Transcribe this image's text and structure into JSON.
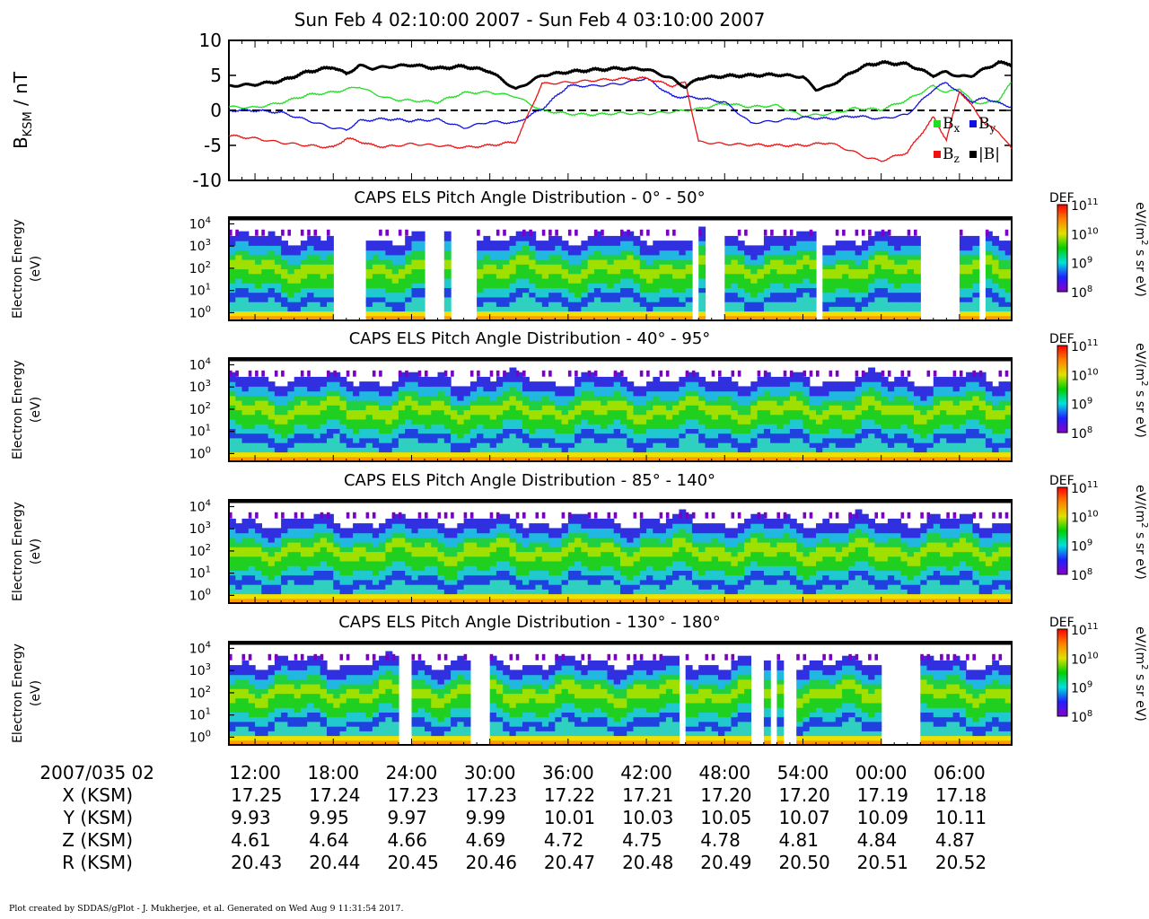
{
  "title": "Sun Feb 4 02:10:00 2007 - Sun Feb 4 03:10:00 2007",
  "footer": "Plot created by SDDAS/gPlot - J. Mukherjee, et al.  Generated on Wed Aug 9 11:31:54 2017.",
  "colors": {
    "bx": "#22dd22",
    "by": "#1010e0",
    "bz": "#ee1111",
    "btot": "#000000",
    "colormap": [
      "#8a00c8",
      "#2020ff",
      "#00e0e0",
      "#00d000",
      "#e0e000",
      "#ff8000",
      "#ff0000"
    ]
  },
  "chart_data": [
    {
      "type": "line",
      "ylabel_main": "B",
      "ylabel_sub": "KSM",
      "ylabel_unit": " / nT",
      "ylim": [
        -10,
        10
      ],
      "yticks": [
        "10",
        "5",
        "0",
        "-5",
        "-10"
      ],
      "xlim": [
        0,
        60
      ],
      "zero_line": "dashed",
      "legend": [
        {
          "sym": "B",
          "sub": "x",
          "series": "bx"
        },
        {
          "sym": "B",
          "sub": "y",
          "series": "by"
        },
        {
          "sym": "B",
          "sub": "z",
          "series": "bz"
        },
        {
          "sym": "|B|",
          "sub": "",
          "series": "btot"
        }
      ],
      "legend_position": "bottom-right",
      "series": [
        {
          "key": "bx",
          "x": [
            0,
            2,
            4,
            6,
            8,
            9,
            10,
            11,
            12,
            13,
            14,
            16,
            18,
            20,
            22,
            24,
            26,
            28,
            30,
            32,
            34,
            36,
            38,
            40,
            42,
            44,
            46,
            48,
            50,
            52,
            54,
            55,
            56,
            57,
            58,
            59,
            60
          ],
          "values": [
            0.5,
            0.4,
            1.1,
            2.2,
            2.6,
            3.0,
            3.4,
            2.5,
            1.8,
            1.5,
            1.4,
            1.2,
            2.5,
            2.6,
            2.0,
            0.0,
            -0.5,
            -0.6,
            -0.4,
            -0.5,
            -0.2,
            0.2,
            1.0,
            0.5,
            0.7,
            -0.8,
            -0.5,
            0.3,
            0.1,
            1.5,
            3.5,
            2.5,
            3.2,
            1.2,
            1.0,
            1.5,
            4.0
          ]
        },
        {
          "key": "by",
          "x": [
            0,
            2,
            4,
            6,
            8,
            9,
            10,
            12,
            14,
            16,
            18,
            20,
            22,
            24,
            26,
            28,
            30,
            32,
            34,
            36,
            38,
            40,
            42,
            44,
            46,
            48,
            50,
            52,
            54,
            55,
            56,
            57,
            58,
            59,
            60
          ],
          "values": [
            0.0,
            0.0,
            -0.3,
            -1.4,
            -2.5,
            -2.8,
            -1.5,
            -1.2,
            -1.5,
            -1.3,
            -2.5,
            -1.6,
            -1.8,
            0.2,
            3.5,
            3.5,
            3.8,
            4.6,
            2.0,
            1.8,
            1.2,
            -1.8,
            -1.5,
            -1.0,
            -1.2,
            -0.8,
            -1.2,
            -0.6,
            3.0,
            4.0,
            2.5,
            1.2,
            1.8,
            1.0,
            0.5
          ]
        },
        {
          "key": "bz",
          "x": [
            0,
            2,
            4,
            6,
            8,
            9,
            10,
            11,
            12,
            14,
            16,
            18,
            20,
            22,
            24,
            26,
            28,
            30,
            32,
            34,
            35,
            36,
            38,
            40,
            42,
            44,
            46,
            48,
            49,
            50,
            52,
            54,
            55,
            56,
            57,
            58,
            59,
            60
          ],
          "values": [
            -3.6,
            -4.0,
            -4.6,
            -5.0,
            -5.3,
            -4.0,
            -4.4,
            -5.0,
            -5.2,
            -4.8,
            -5.0,
            -5.3,
            -5.0,
            -4.5,
            3.8,
            4.0,
            4.3,
            4.5,
            4.6,
            3.5,
            4.0,
            -4.5,
            -4.8,
            -4.9,
            -5.0,
            -5.0,
            -4.6,
            -6.0,
            -6.8,
            -7.2,
            -6.0,
            -1.0,
            -4.2,
            2.8,
            0.5,
            -2.0,
            -3.0,
            -5.5
          ]
        },
        {
          "key": "btot",
          "x": [
            0,
            2,
            4,
            6,
            8,
            9,
            10,
            11,
            12,
            14,
            16,
            18,
            20,
            22,
            24,
            26,
            28,
            30,
            32,
            34,
            35,
            36,
            38,
            40,
            42,
            44,
            45,
            46,
            48,
            49,
            50,
            52,
            54,
            55,
            56,
            57,
            58,
            59,
            60
          ],
          "values": [
            3.5,
            3.7,
            4.2,
            5.5,
            6.2,
            5.2,
            6.4,
            6.0,
            6.2,
            6.5,
            6.0,
            6.3,
            5.6,
            3.0,
            5.0,
            5.5,
            5.8,
            6.0,
            5.9,
            4.5,
            3.3,
            4.6,
            4.9,
            5.0,
            5.1,
            4.8,
            3.0,
            3.4,
            5.7,
            6.5,
            6.8,
            6.6,
            5.0,
            5.5,
            4.8,
            5.0,
            6.0,
            6.8,
            6.6
          ]
        }
      ]
    },
    {
      "type": "heatmap",
      "title": "CAPS ELS Pitch Angle Distribution - 0° - 50°",
      "ylabel": "Electron Energy",
      "yunit": "(eV)",
      "yticks": [
        "10",
        "10",
        "10",
        "10",
        "10"
      ],
      "yexp": [
        "4",
        "3",
        "2",
        "1",
        "0"
      ],
      "colorbar_label": "DEF",
      "colorbar_unit": "eV/(m",
      "colorbar_unit2": "2",
      "colorbar_unit3": " s sr eV)",
      "colorbar_ticks": [
        "10",
        "10",
        "10",
        "10"
      ],
      "colorbar_exp": [
        "11",
        "10",
        "9",
        "8"
      ],
      "gaps": [
        [
          8.2,
          10.3
        ],
        [
          14.9,
          16.4
        ],
        [
          17.1,
          19.2
        ],
        [
          35.3,
          36.0
        ],
        [
          36.5,
          38.2
        ],
        [
          45.1,
          45.7
        ],
        [
          52.8,
          56.2
        ],
        [
          57.6,
          58.2
        ]
      ]
    },
    {
      "type": "heatmap",
      "title": "CAPS ELS Pitch Angle Distribution - 40° - 95°",
      "ylabel": "Electron Energy",
      "yunit": "(eV)",
      "yticks": [
        "10",
        "10",
        "10",
        "10",
        "10"
      ],
      "yexp": [
        "4",
        "3",
        "2",
        "1",
        "0"
      ],
      "colorbar_label": "DEF",
      "colorbar_unit": "eV/(m",
      "colorbar_unit2": "2",
      "colorbar_unit3": " s sr eV)",
      "colorbar_ticks": [
        "10",
        "10",
        "10",
        "10"
      ],
      "colorbar_exp": [
        "11",
        "10",
        "9",
        "8"
      ],
      "gaps": []
    },
    {
      "type": "heatmap",
      "title": "CAPS ELS Pitch Angle Distribution - 85° - 140°",
      "ylabel": "Electron Energy",
      "yunit": "(eV)",
      "yticks": [
        "10",
        "10",
        "10",
        "10",
        "10"
      ],
      "yexp": [
        "4",
        "3",
        "2",
        "1",
        "0"
      ],
      "colorbar_label": "DEF",
      "colorbar_unit": "eV/(m",
      "colorbar_unit2": "2",
      "colorbar_unit3": " s sr eV)",
      "colorbar_ticks": [
        "10",
        "10",
        "10",
        "10"
      ],
      "colorbar_exp": [
        "11",
        "10",
        "9",
        "8"
      ],
      "gaps": []
    },
    {
      "type": "heatmap",
      "title": "CAPS ELS Pitch Angle Distribution - 130° - 180°",
      "ylabel": "Electron Energy",
      "yunit": "(eV)",
      "yticks": [
        "10",
        "10",
        "10",
        "10",
        "10"
      ],
      "yexp": [
        "4",
        "3",
        "2",
        "1",
        "0"
      ],
      "colorbar_label": "DEF",
      "colorbar_unit": "eV/(m",
      "colorbar_unit2": "2",
      "colorbar_unit3": " s sr eV)",
      "colorbar_ticks": [
        "10",
        "10",
        "10",
        "10"
      ],
      "colorbar_exp": [
        "11",
        "10",
        "9",
        "8"
      ],
      "gaps": [
        [
          13.1,
          14.2
        ],
        [
          18.6,
          20.2
        ],
        [
          34.3,
          35.0
        ],
        [
          40.2,
          40.8
        ],
        [
          41.4,
          42.0
        ],
        [
          42.6,
          43.4
        ],
        [
          50.0,
          52.8
        ]
      ]
    }
  ],
  "ephemeris": {
    "date_label": "2007/035 02",
    "times": [
      "12:00",
      "18:00",
      "24:00",
      "30:00",
      "36:00",
      "42:00",
      "48:00",
      "54:00",
      "00:00",
      "06:00"
    ],
    "rows": [
      {
        "label": "X (KSM)",
        "values": [
          "17.25",
          "17.24",
          "17.23",
          "17.23",
          "17.22",
          "17.21",
          "17.20",
          "17.20",
          "17.19",
          "17.18"
        ]
      },
      {
        "label": "Y (KSM)",
        "values": [
          "9.93",
          "9.95",
          "9.97",
          "9.99",
          "10.01",
          "10.03",
          "10.05",
          "10.07",
          "10.09",
          "10.11"
        ]
      },
      {
        "label": "Z (KSM)",
        "values": [
          "4.61",
          "4.64",
          "4.66",
          "4.69",
          "4.72",
          "4.75",
          "4.78",
          "4.81",
          "4.84",
          "4.87"
        ]
      },
      {
        "label": "R (KSM)",
        "values": [
          "20.43",
          "20.44",
          "20.45",
          "20.46",
          "20.47",
          "20.48",
          "20.49",
          "20.50",
          "20.51",
          "20.52"
        ]
      }
    ]
  }
}
